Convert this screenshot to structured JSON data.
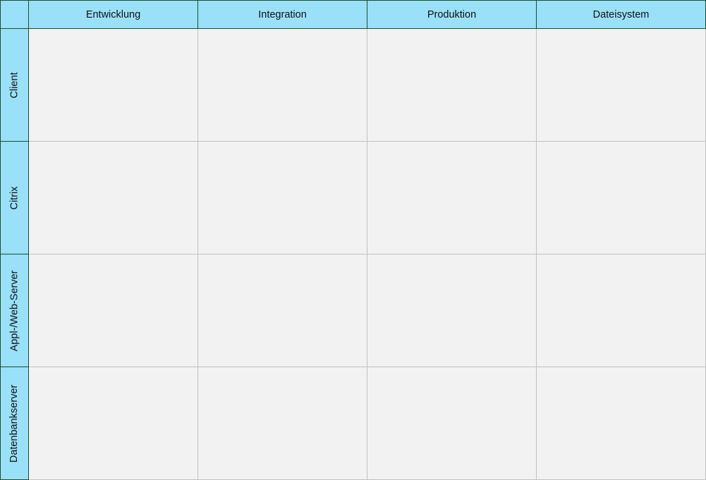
{
  "columns": [
    "Entwicklung",
    "Integration",
    "Produktion",
    "Dateisystem"
  ],
  "rows": [
    "Client",
    "Citrix",
    "Appl-/Web-Server",
    "Datenbankserver"
  ],
  "colors": {
    "header_fill": "#99e0f8",
    "header_border": "#1e4d2b",
    "cell_fill": "#f2f2f2",
    "grid_line": "#c0c0c0"
  }
}
